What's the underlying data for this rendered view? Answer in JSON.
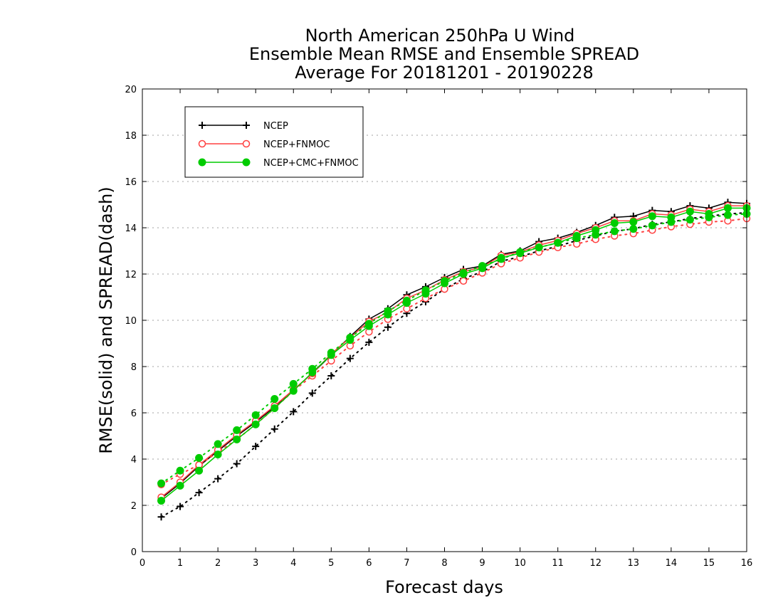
{
  "chart_data": {
    "type": "line",
    "title_lines": [
      "North American 250hPa U Wind",
      "Ensemble Mean RMSE and Ensemble SPREAD",
      "Average For 20181201 - 20190228"
    ],
    "xlabel": "Forecast days",
    "ylabel": "RMSE(solid) and SPREAD(dash)",
    "xlim": [
      0,
      16
    ],
    "ylim": [
      0,
      20
    ],
    "xticks": [
      0,
      1,
      2,
      3,
      4,
      5,
      6,
      7,
      8,
      9,
      10,
      11,
      12,
      13,
      14,
      15,
      16
    ],
    "yticks": [
      0,
      2,
      4,
      6,
      8,
      10,
      12,
      14,
      16,
      18,
      20
    ],
    "grid": "horizontal dotted",
    "legend_position": "top-left",
    "x": [
      0.5,
      1,
      1.5,
      2,
      2.5,
      3,
      3.5,
      4,
      4.5,
      5,
      5.5,
      6,
      6.5,
      7,
      7.5,
      8,
      8.5,
      9,
      9.5,
      10,
      10.5,
      11,
      11.5,
      12,
      12.5,
      13,
      13.5,
      14,
      14.5,
      15,
      15.5,
      16
    ],
    "series": [
      {
        "name": "NCEP",
        "color": "#000000",
        "marker": "plus",
        "rmse": [
          2.3,
          2.95,
          3.7,
          4.35,
          5.0,
          5.6,
          6.25,
          7.0,
          7.7,
          8.5,
          9.3,
          10.05,
          10.5,
          11.1,
          11.45,
          11.85,
          12.2,
          12.35,
          12.85,
          13.0,
          13.4,
          13.55,
          13.8,
          14.1,
          14.45,
          14.5,
          14.75,
          14.7,
          14.95,
          14.85,
          15.1,
          15.05
        ],
        "spread": [
          1.5,
          1.95,
          2.55,
          3.15,
          3.8,
          4.55,
          5.3,
          6.05,
          6.85,
          7.6,
          8.35,
          9.05,
          9.7,
          10.3,
          10.8,
          11.35,
          11.8,
          12.1,
          12.55,
          12.75,
          13.0,
          13.2,
          13.45,
          13.65,
          13.85,
          13.95,
          14.15,
          14.25,
          14.4,
          14.5,
          14.6,
          14.65
        ]
      },
      {
        "name": "NCEP+FNMOC",
        "color": "#ff4040",
        "marker": "open-circle",
        "rmse": [
          2.35,
          3.0,
          3.75,
          4.4,
          5.05,
          5.65,
          6.3,
          7.0,
          7.7,
          8.55,
          9.25,
          9.95,
          10.35,
          10.95,
          11.3,
          11.75,
          12.1,
          12.3,
          12.8,
          12.95,
          13.25,
          13.45,
          13.75,
          14.0,
          14.3,
          14.3,
          14.6,
          14.55,
          14.8,
          14.7,
          14.95,
          14.95
        ],
        "spread": [
          2.9,
          3.35,
          3.75,
          4.3,
          4.85,
          5.5,
          6.2,
          6.95,
          7.6,
          8.25,
          8.9,
          9.5,
          10.05,
          10.5,
          10.95,
          11.35,
          11.7,
          12.05,
          12.45,
          12.7,
          12.95,
          13.15,
          13.3,
          13.5,
          13.65,
          13.75,
          13.9,
          14.05,
          14.15,
          14.25,
          14.3,
          14.4
        ]
      },
      {
        "name": "NCEP+CMC+FNMOC",
        "color": "#00cc00",
        "marker": "filled-circle",
        "rmse": [
          2.2,
          2.85,
          3.5,
          4.2,
          4.85,
          5.5,
          6.2,
          6.95,
          7.75,
          8.5,
          9.15,
          9.75,
          10.25,
          10.75,
          11.15,
          11.6,
          12.0,
          12.25,
          12.7,
          12.9,
          13.15,
          13.35,
          13.65,
          13.9,
          14.2,
          14.25,
          14.5,
          14.45,
          14.7,
          14.6,
          14.85,
          14.85
        ],
        "spread": [
          2.95,
          3.5,
          4.05,
          4.65,
          5.25,
          5.9,
          6.6,
          7.25,
          7.9,
          8.6,
          9.25,
          9.85,
          10.4,
          10.85,
          11.3,
          11.7,
          12.05,
          12.35,
          12.65,
          12.95,
          13.15,
          13.35,
          13.55,
          13.7,
          13.85,
          13.95,
          14.1,
          14.25,
          14.35,
          14.45,
          14.55,
          14.6
        ]
      }
    ]
  }
}
